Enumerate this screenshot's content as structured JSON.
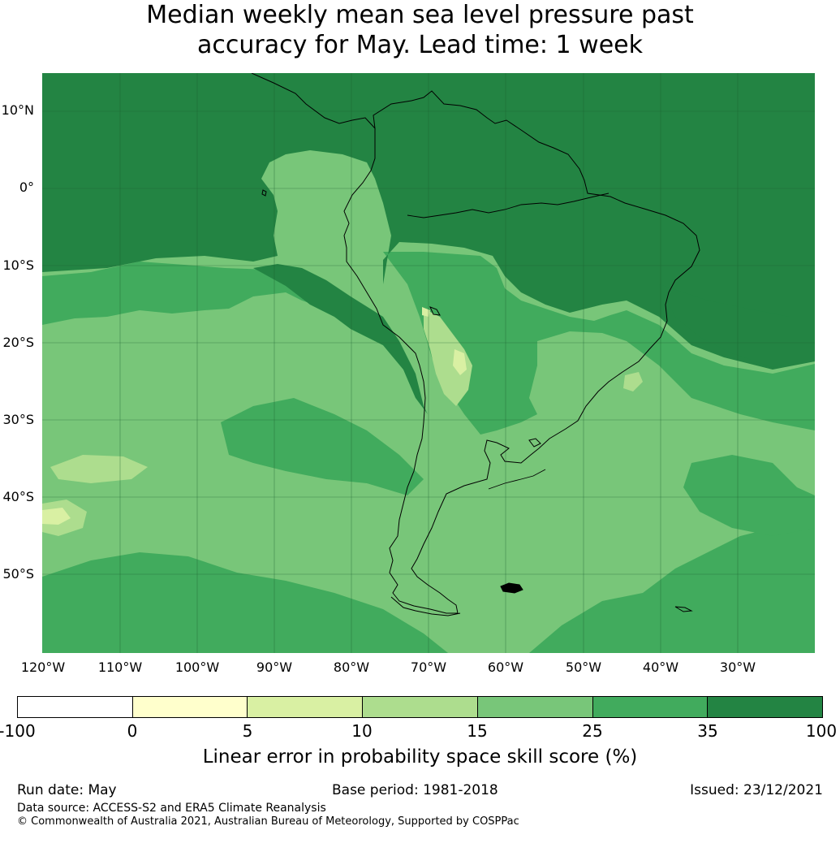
{
  "title": {
    "line1": "Median weekly mean sea level pressure past",
    "line2": "accuracy for May. Lead time: 1 week"
  },
  "map": {
    "lat_labels": [
      "10°N",
      "0°",
      "10°S",
      "20°S",
      "30°S",
      "40°S",
      "50°S"
    ],
    "lon_labels": [
      "120°W",
      "110°W",
      "100°W",
      "90°W",
      "80°W",
      "70°W",
      "60°W",
      "50°W",
      "40°W",
      "30°W"
    ],
    "colors": {
      "c_neg": "#ffffff",
      "c_0_5": "#ffffcc",
      "c_5_10": "#d9f0a3",
      "c_10_15": "#addd8e",
      "c_15_25": "#78c679",
      "c_25_35": "#41ab5d",
      "c_35_100": "#238443",
      "coast": "#000000",
      "grid": "#1a5e2e"
    }
  },
  "colorbar": {
    "ticks": [
      "-100",
      "0",
      "5",
      "10",
      "15",
      "25",
      "35",
      "100"
    ],
    "colors": [
      "#ffffff",
      "#ffffcc",
      "#d9f0a3",
      "#addd8e",
      "#78c679",
      "#41ab5d",
      "#238443"
    ],
    "label": "Linear error in probability space skill score (%)"
  },
  "footer": {
    "run_date": "Run date: May",
    "base_period": "Base period: 1981-2018",
    "issued": "Issued: 23/12/2021",
    "data_source": "Data source: ACCESS-S2 and ERA5 Climate Reanalysis",
    "copyright": "© Commonwealth of Australia 2021, Australian Bureau of Meteorology, Supported by COSPPac"
  }
}
